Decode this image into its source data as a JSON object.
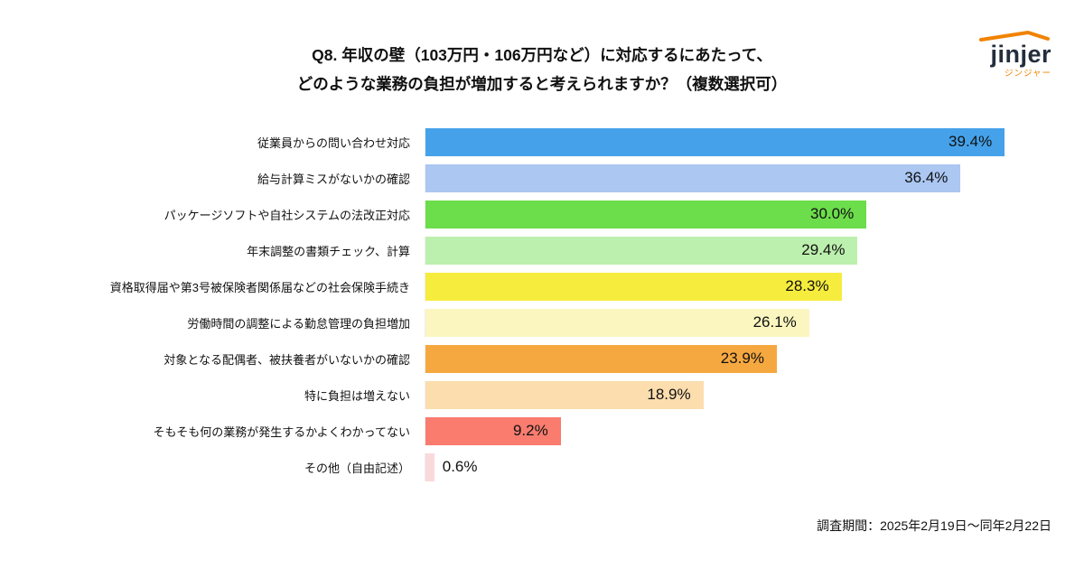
{
  "header": {
    "title_line1": "Q8. 年収の壁（103万円・106万円など）に対応するにあたって、",
    "title_line2": "どのような業務の負担が増加すると考えられますか？（複数選択可）"
  },
  "logo": {
    "wordmark": "jinjer",
    "subtitle": "ジンジャー",
    "brand_color": "#F08300",
    "text_color": "#232E3D"
  },
  "footer": {
    "survey_period": "調査期間：2025年2月19日～同年2月22日"
  },
  "chart_data": {
    "type": "bar",
    "orientation": "horizontal",
    "title": "Q8. 年収の壁（103万円・106万円など）に対応するにあたって、どのような業務の負担が増加すると考えられますか？（複数選択可）",
    "categories": [
      "従業員からの問い合わせ対応",
      "給与計算ミスがないかの確認",
      "パッケージソフトや自社システムの法改正対応",
      "年末調整の書類チェック、計算",
      "資格取得届や第3号被保険者関係届などの社会保険手続き",
      "労働時間の調整による勤怠管理の負担増加",
      "対象となる配偶者、被扶養者がいないかの確認",
      "特に負担は増えない",
      "そもそも何の業務が発生するかよくわかってない",
      "その他（自由記述）"
    ],
    "values": [
      39.4,
      36.4,
      30.0,
      29.4,
      28.3,
      26.1,
      23.9,
      18.9,
      9.2,
      0.6
    ],
    "value_labels": [
      "39.4%",
      "36.4%",
      "30.0%",
      "29.4%",
      "28.3%",
      "26.1%",
      "23.9%",
      "18.9%",
      "9.2%",
      "0.6%"
    ],
    "colors": [
      "#45A2EA",
      "#ABC7F2",
      "#6CDD4B",
      "#BCF0AE",
      "#F6EC3D",
      "#FBF6BF",
      "#F6A840",
      "#FBDDAE",
      "#F97C6F",
      "#FAD9DB"
    ],
    "xlim": [
      0,
      40
    ],
    "xlabel": "",
    "ylabel": "",
    "grid": false,
    "legend": false
  }
}
